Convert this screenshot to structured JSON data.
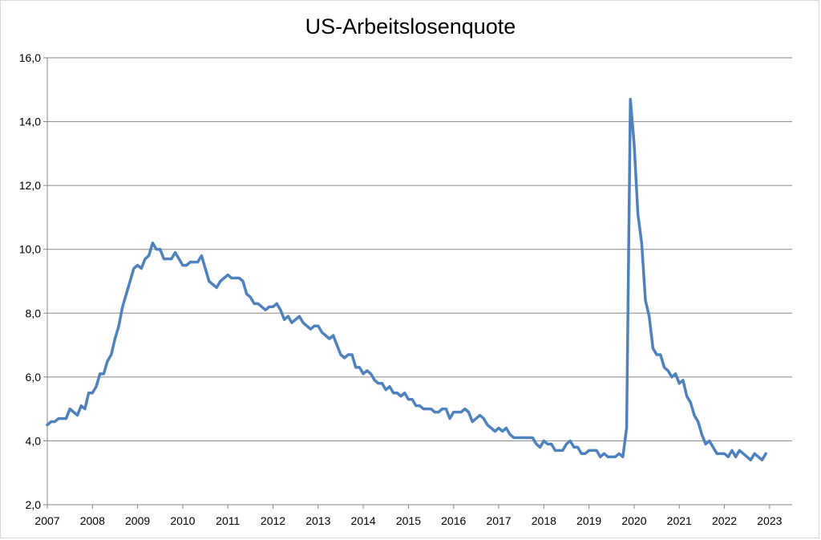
{
  "chart_data": {
    "type": "line",
    "title": "US-Arbeitslosenquote",
    "xlabel": "",
    "ylabel": "",
    "ylim": [
      2.0,
      16.0
    ],
    "xlim": [
      "2007-01",
      "2023-07"
    ],
    "yticks": [
      "2,0",
      "4,0",
      "6,0",
      "8,0",
      "10,0",
      "12,0",
      "14,0",
      "16,0"
    ],
    "xticks": [
      "2007",
      "2008",
      "2009",
      "2010",
      "2011",
      "2012",
      "2013",
      "2014",
      "2015",
      "2016",
      "2017",
      "2018",
      "2019",
      "2020",
      "2021",
      "2022",
      "2023"
    ],
    "grid": "horizontal",
    "legend": "none",
    "series": [
      {
        "color": "#4f81bd",
        "x_start": "2007-01",
        "x_step": "1 month",
        "values": [
          4.5,
          4.6,
          4.6,
          4.7,
          4.7,
          4.7,
          5.0,
          4.9,
          4.8,
          5.1,
          5.0,
          5.5,
          5.5,
          5.7,
          6.1,
          6.1,
          6.5,
          6.7,
          7.2,
          7.6,
          8.2,
          8.6,
          9.0,
          9.4,
          9.5,
          9.4,
          9.7,
          9.8,
          10.2,
          10.0,
          10.0,
          9.7,
          9.7,
          9.7,
          9.9,
          9.7,
          9.5,
          9.5,
          9.6,
          9.6,
          9.6,
          9.8,
          9.4,
          9.0,
          8.9,
          8.8,
          9.0,
          9.1,
          9.2,
          9.1,
          9.1,
          9.1,
          9.0,
          8.6,
          8.5,
          8.3,
          8.3,
          8.2,
          8.1,
          8.2,
          8.2,
          8.3,
          8.1,
          7.8,
          7.9,
          7.7,
          7.8,
          7.9,
          7.7,
          7.6,
          7.5,
          7.6,
          7.6,
          7.4,
          7.3,
          7.2,
          7.3,
          7.0,
          6.7,
          6.6,
          6.7,
          6.7,
          6.3,
          6.3,
          6.1,
          6.2,
          6.1,
          5.9,
          5.8,
          5.8,
          5.6,
          5.7,
          5.5,
          5.5,
          5.4,
          5.5,
          5.3,
          5.3,
          5.1,
          5.1,
          5.0,
          5.0,
          5.0,
          4.9,
          4.9,
          5.0,
          5.0,
          4.7,
          4.9,
          4.9,
          4.9,
          5.0,
          4.9,
          4.6,
          4.7,
          4.8,
          4.7,
          4.5,
          4.4,
          4.3,
          4.4,
          4.3,
          4.4,
          4.2,
          4.1,
          4.1,
          4.1,
          4.1,
          4.1,
          4.1,
          3.9,
          3.8,
          4.0,
          3.9,
          3.9,
          3.7,
          3.7,
          3.7,
          3.9,
          4.0,
          3.8,
          3.8,
          3.6,
          3.6,
          3.7,
          3.7,
          3.7,
          3.5,
          3.6,
          3.5,
          3.5,
          3.5,
          3.6,
          3.5,
          4.4,
          14.7,
          13.3,
          11.1,
          10.2,
          8.4,
          7.9,
          6.9,
          6.7,
          6.7,
          6.3,
          6.2,
          6.0,
          6.1,
          5.8,
          5.9,
          5.4,
          5.2,
          4.8,
          4.6,
          4.2,
          3.9,
          4.0,
          3.8,
          3.6,
          3.6,
          3.6,
          3.5,
          3.7,
          3.5,
          3.7,
          3.6,
          3.5,
          3.4,
          3.6,
          3.5,
          3.4,
          3.6
        ]
      }
    ]
  }
}
